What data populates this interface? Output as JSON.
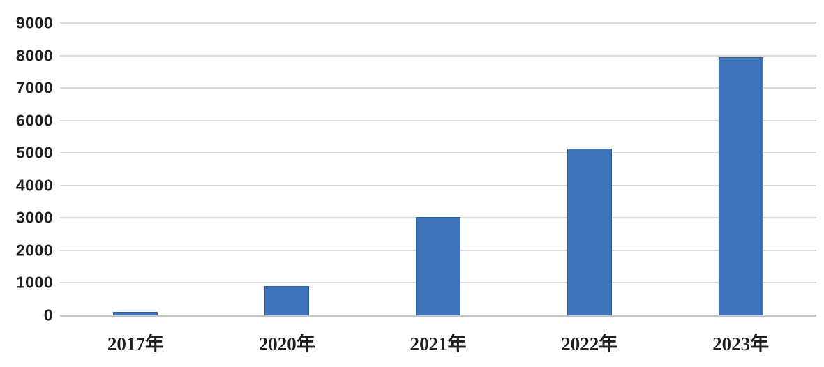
{
  "chart_data": {
    "type": "bar",
    "categories": [
      "2017年",
      "2020年",
      "2021年",
      "2022年",
      "2023年"
    ],
    "values": [
      100,
      910,
      3030,
      5130,
      7950
    ],
    "title": "",
    "xlabel": "",
    "ylabel": "",
    "ylim": [
      0,
      9000
    ],
    "yticks": [
      0,
      1000,
      2000,
      3000,
      4000,
      5000,
      6000,
      7000,
      8000,
      9000
    ],
    "grid": true,
    "legend": false,
    "colors": {
      "bar_fill": "#3E73B9",
      "bar_border": "#33619F",
      "gridline": "#D9D9D9",
      "axis_baseline": "#C4C4C4",
      "tick_text": "#1F1F1F",
      "background": "#FFFFFF"
    }
  }
}
